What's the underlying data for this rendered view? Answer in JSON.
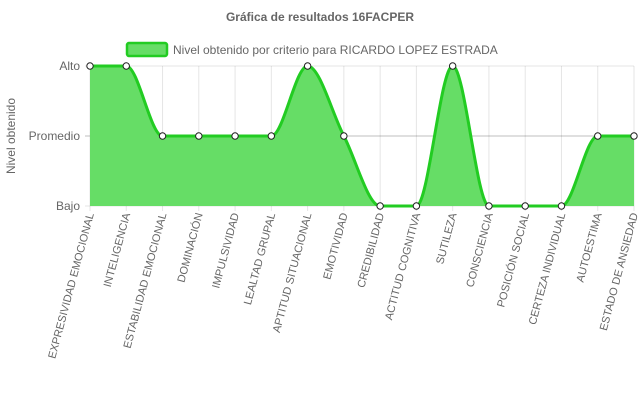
{
  "chart_data": {
    "type": "area",
    "title": "Gráfica de resultados 16FACPER",
    "ylabel": "Nivel obtenido",
    "xlabel": "",
    "y_categories": [
      "Bajo",
      "Promedio",
      "Alto"
    ],
    "ylim": [
      1,
      3
    ],
    "grid": true,
    "legend_position": "top",
    "categories": [
      "EXPRESIVIDAD EMOCIONAL",
      "INTELIGENCIA",
      "ESTABILIDAD EMOCIONAL",
      "DOMINACIÓN",
      "IMPULSIVIDAD",
      "LEALTAD GRUPAL",
      "APTITUD SITUACIONAL",
      "EMOTIVIDAD",
      "CREDIBILIDAD",
      "ACTITUD COGNITIVA",
      "SUTILEZA",
      "CONSCIENCIA",
      "POSICIÓN SOCIAL",
      "CERTEZA INDIVIDUAL",
      "AUTOESTIMA",
      "ESTADO DE ANSIEDAD"
    ],
    "series": [
      {
        "name": "Nivel obtenido por criterio para RICARDO LOPEZ ESTRADA",
        "values": [
          3,
          3,
          2,
          2,
          2,
          2,
          3,
          2,
          1,
          1,
          3,
          1,
          1,
          1,
          2,
          2
        ],
        "line_color": "#22cc22",
        "fill_color": "#66dd66"
      }
    ]
  }
}
